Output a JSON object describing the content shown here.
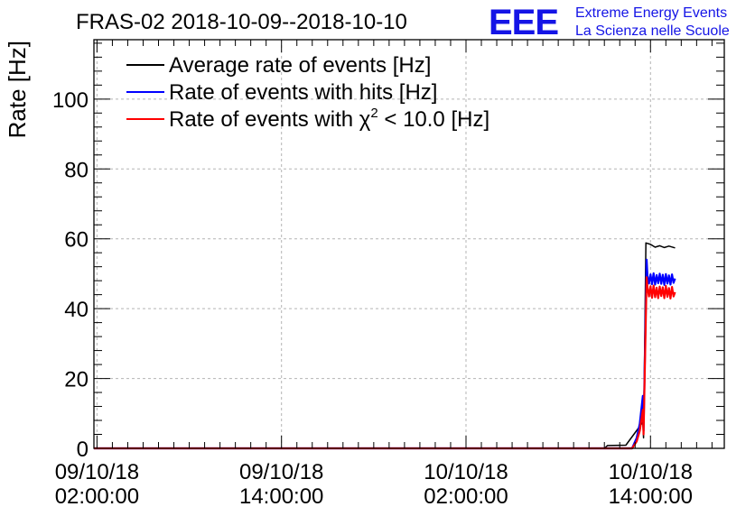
{
  "chart_data": {
    "type": "line",
    "title": "FRAS-02 2018-10-09--2018-10-10",
    "logo": {
      "text": "EEE",
      "line1": "Extreme Energy Events",
      "line2": "La Scienza nelle Scuole",
      "color": "#1414e6"
    },
    "ylabel": "Rate [Hz]",
    "xlabel": "",
    "x_unit": "hours since 09/10/18 02:00:00",
    "xlim": [
      -0.2,
      40.8
    ],
    "ylim": [
      0,
      117
    ],
    "grid": true,
    "legend_position": "top-left",
    "x_ticks": [
      {
        "value": 0,
        "line1": "09/10/18",
        "line2": "02:00:00"
      },
      {
        "value": 12,
        "line1": "09/10/18",
        "line2": "14:00:00"
      },
      {
        "value": 24,
        "line1": "10/10/18",
        "line2": "02:00:00"
      },
      {
        "value": 36,
        "line1": "10/10/18",
        "line2": "14:00:00"
      }
    ],
    "y_ticks": [
      0,
      20,
      40,
      60,
      80,
      100
    ],
    "series": [
      {
        "name": "Average rate of events [Hz]",
        "color": "#000000",
        "points": [
          [
            -0.2,
            0
          ],
          [
            33.0,
            0
          ],
          [
            33.2,
            0.8
          ],
          [
            34.4,
            0.9
          ],
          [
            35.5,
            7.5
          ],
          [
            35.55,
            3
          ],
          [
            35.7,
            58.8
          ],
          [
            36.0,
            58.4
          ],
          [
            36.3,
            57.6
          ],
          [
            36.6,
            58.0
          ],
          [
            36.9,
            57.5
          ],
          [
            37.2,
            57.9
          ],
          [
            37.6,
            57.4
          ]
        ]
      },
      {
        "name": "Rate of events with hits [Hz]",
        "color": "#0000ff",
        "points": [
          [
            -0.2,
            0
          ],
          [
            34.8,
            0
          ],
          [
            35.1,
            3
          ],
          [
            35.3,
            7
          ],
          [
            35.5,
            15
          ],
          [
            35.55,
            5
          ],
          [
            35.75,
            54
          ],
          [
            35.8,
            49.5
          ],
          [
            35.9,
            47.2
          ],
          [
            36.0,
            49.8
          ],
          [
            36.1,
            47.0
          ],
          [
            36.2,
            50.1
          ],
          [
            36.3,
            46.9
          ],
          [
            36.4,
            49.6
          ],
          [
            36.5,
            47.3
          ],
          [
            36.6,
            50.0
          ],
          [
            36.7,
            47.1
          ],
          [
            36.8,
            49.7
          ],
          [
            36.9,
            46.8
          ],
          [
            37.0,
            49.9
          ],
          [
            37.1,
            47.2
          ],
          [
            37.2,
            49.5
          ],
          [
            37.3,
            46.9
          ],
          [
            37.4,
            49.8
          ],
          [
            37.5,
            47.4
          ],
          [
            37.6,
            48.6
          ]
        ]
      },
      {
        "name": "Rate of events with χ² < 10.0 [Hz]",
        "color": "#ff0000",
        "points": [
          [
            -0.2,
            0
          ],
          [
            34.8,
            0
          ],
          [
            35.1,
            2
          ],
          [
            35.3,
            5
          ],
          [
            35.5,
            11
          ],
          [
            35.55,
            4
          ],
          [
            35.75,
            49
          ],
          [
            35.8,
            46.2
          ],
          [
            35.9,
            43.5
          ],
          [
            36.0,
            46.4
          ],
          [
            36.1,
            43.1
          ],
          [
            36.2,
            46.6
          ],
          [
            36.3,
            43.3
          ],
          [
            36.4,
            46.0
          ],
          [
            36.5,
            43.0
          ],
          [
            36.6,
            46.3
          ],
          [
            36.7,
            43.6
          ],
          [
            36.8,
            46.1
          ],
          [
            36.9,
            43.0
          ],
          [
            37.0,
            46.5
          ],
          [
            37.1,
            43.4
          ],
          [
            37.2,
            45.9
          ],
          [
            37.3,
            42.9
          ],
          [
            37.4,
            46.2
          ],
          [
            37.5,
            43.5
          ],
          [
            37.6,
            44.7
          ]
        ]
      }
    ]
  }
}
